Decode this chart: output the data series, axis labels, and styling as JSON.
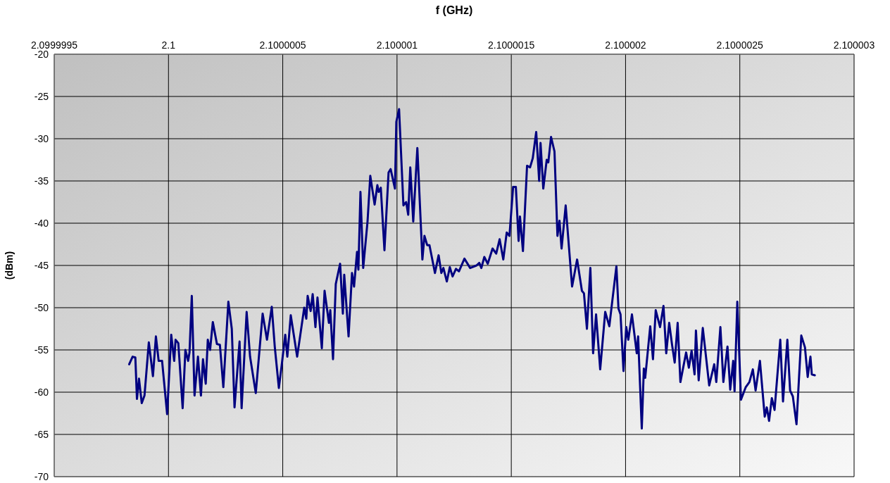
{
  "chart_data": {
    "type": "line",
    "xlabel": "f (GHz)",
    "ylabel": "(dBm)",
    "xlim": [
      2.0999995,
      2.100003
    ],
    "xticks": [
      2.0999995,
      2.1,
      2.1000005,
      2.100001,
      2.1000015,
      2.100002,
      2.1000025,
      2.100003
    ],
    "ylim": [
      -70,
      -20
    ],
    "yticks": [
      -70,
      -65,
      -60,
      -55,
      -50,
      -45,
      -40,
      -35,
      -30,
      -25,
      -20
    ],
    "grid": true,
    "marker": "none",
    "line_style": "solid",
    "series": [
      {
        "color": "#000080",
        "x": [
          2.099999828,
          2.099999843,
          2.099999855,
          2.099999862,
          2.099999871,
          2.099999883,
          2.099999895,
          2.099999914,
          2.099999932,
          2.099999945,
          2.099999957,
          2.099999972,
          2.099999994,
          2.100000012,
          2.100000025,
          2.100000031,
          2.100000043,
          2.100000062,
          2.100000074,
          2.100000086,
          2.100000092,
          2.100000102,
          2.100000114,
          2.100000129,
          2.100000142,
          2.100000151,
          2.100000163,
          2.100000172,
          2.100000182,
          2.100000194,
          2.100000212,
          2.100000225,
          2.10000024,
          2.100000262,
          2.100000277,
          2.100000289,
          2.100000311,
          2.10000032,
          2.100000342,
          2.100000357,
          2.100000382,
          2.100000412,
          2.100000431,
          2.100000452,
          2.100000465,
          2.100000483,
          2.100000495,
          2.100000511,
          2.10000052,
          2.100000535,
          2.100000563,
          2.100000594,
          2.100000603,
          2.100000609,
          2.100000622,
          2.100000631,
          2.100000643,
          2.100000652,
          2.100000671,
          2.100000683,
          2.100000702,
          2.100000708,
          2.10000072,
          2.100000732,
          2.100000751,
          2.100000763,
          2.100000769,
          2.100000788,
          2.100000803,
          2.100000812,
          2.100000825,
          2.100000831,
          2.10000084,
          2.100000852,
          2.100000871,
          2.100000883,
          2.100000902,
          2.100000914,
          2.10000092,
          2.100000929,
          2.100000945,
          2.100000963,
          2.100000972,
          2.100000991,
          2.100000997,
          2.100001009,
          2.100001028,
          2.10000104,
          2.100001049,
          2.100001058,
          2.100001071,
          2.100001089,
          2.100001111,
          2.10000112,
          2.100001132,
          2.100001142,
          2.100001166,
          2.100001182,
          2.100001194,
          2.100001203,
          2.100001218,
          2.100001231,
          2.100001243,
          2.100001258,
          2.100001271,
          2.100001295,
          2.10000132,
          2.100001348,
          2.10000136,
          2.100001369,
          2.100001382,
          2.100001397,
          2.100001418,
          2.100001434,
          2.100001449,
          2.100001465,
          2.10000148,
          2.100001492,
          2.100001508,
          2.10000152,
          2.100001532,
          2.100001538,
          2.100001551,
          2.100001569,
          2.100001582,
          2.100001594,
          2.100001609,
          2.100001622,
          2.100001628,
          2.10000164,
          2.100001655,
          2.100001662,
          2.100001674,
          2.100001689,
          2.100001702,
          2.100001711,
          2.10000172,
          2.100001738,
          2.100001766,
          2.100001788,
          2.100001809,
          2.100001818,
          2.100001831,
          2.100001846,
          2.100001858,
          2.100001871,
          2.100001889,
          2.100001911,
          2.100001929,
          2.100001942,
          2.10000196,
          2.100001969,
          2.100001978,
          2.100001991,
          2.100002003,
          2.100002012,
          2.100002028,
          2.100002049,
          2.100002055,
          2.100002071,
          2.10000208,
          2.100002086,
          2.100002108,
          2.10000212,
          2.100002132,
          2.100002151,
          2.100002166,
          2.100002178,
          2.100002191,
          2.100002203,
          2.100002215,
          2.100002228,
          2.10000224,
          2.100002265,
          2.100002277,
          2.100002289,
          2.100002302,
          2.100002308,
          2.10000232,
          2.100002338,
          2.100002366,
          2.100002388,
          2.100002397,
          2.100002415,
          2.100002428,
          2.100002446,
          2.100002458,
          2.100002471,
          2.100002477,
          2.100002489,
          2.100002505,
          2.100002526,
          2.100002542,
          2.100002557,
          2.100002569,
          2.100002588,
          2.100002609,
          2.100002618,
          2.100002628,
          2.10000264,
          2.100002652,
          2.100002677,
          2.100002689,
          2.100002708,
          2.10000272,
          2.100002732,
          2.100002748,
          2.100002769,
          2.100002785,
          2.100002797,
          2.100002809,
          2.100002815,
          2.100002828
        ],
        "values": [
          -56.7,
          -55.8,
          -55.9,
          -60.8,
          -58.4,
          -61.3,
          -60.4,
          -54.1,
          -58.1,
          -53.4,
          -56.3,
          -56.3,
          -62.6,
          -53.2,
          -56.3,
          -53.8,
          -54.2,
          -61.9,
          -55,
          -56.3,
          -55.3,
          -48.6,
          -60.4,
          -55.8,
          -60.4,
          -56.1,
          -59,
          -53.8,
          -55,
          -51.7,
          -54.3,
          -54.4,
          -59.4,
          -49.3,
          -52.5,
          -61.8,
          -54,
          -61.9,
          -50.5,
          -55.8,
          -60.1,
          -50.7,
          -53.8,
          -49.9,
          -54.6,
          -59.5,
          -56.9,
          -53.2,
          -55.8,
          -50.9,
          -55.8,
          -50,
          -51.3,
          -48.6,
          -50.4,
          -48.4,
          -52.3,
          -48.8,
          -54.8,
          -48,
          -51.8,
          -50.3,
          -56.1,
          -47.2,
          -44.8,
          -50.7,
          -46.1,
          -53.4,
          -45.9,
          -47.5,
          -43.4,
          -45.5,
          -36.3,
          -45.3,
          -39.8,
          -34.4,
          -37.8,
          -35.5,
          -36.3,
          -35.8,
          -43.2,
          -34,
          -33.6,
          -35.9,
          -28,
          -26.5,
          -37.9,
          -37.5,
          -39,
          -33.4,
          -39.8,
          -31.1,
          -44.3,
          -41.5,
          -42.6,
          -42.6,
          -45.9,
          -43.8,
          -45.9,
          -45.3,
          -46.9,
          -45.2,
          -46.3,
          -45.4,
          -45.7,
          -44.2,
          -45.3,
          -45,
          -44.7,
          -45.3,
          -44,
          -44.8,
          -43,
          -43.6,
          -41.9,
          -44.3,
          -41.1,
          -41.5,
          -35.7,
          -35.7,
          -42.1,
          -39.2,
          -43.3,
          -33.2,
          -33.4,
          -32.3,
          -29.2,
          -35,
          -30.5,
          -35.9,
          -32.5,
          -32.8,
          -29.8,
          -31.5,
          -41.5,
          -39.7,
          -43,
          -37.9,
          -47.5,
          -44.3,
          -48,
          -48.3,
          -52.5,
          -45.3,
          -55.4,
          -50.8,
          -57.3,
          -50.5,
          -52.2,
          -49.2,
          -45.1,
          -50.1,
          -50.8,
          -57.5,
          -52.3,
          -53.8,
          -50.8,
          -55.4,
          -53.4,
          -64.3,
          -57.2,
          -58.3,
          -52.2,
          -56.1,
          -50.3,
          -52.3,
          -49.8,
          -55.4,
          -51.8,
          -54.3,
          -56.5,
          -51.8,
          -58.8,
          -55.3,
          -57.1,
          -55.1,
          -57.9,
          -52.7,
          -58.6,
          -52.4,
          -59.2,
          -56.7,
          -58.8,
          -52.3,
          -58.8,
          -54.6,
          -59.7,
          -56.3,
          -59.9,
          -49.3,
          -60.9,
          -59.4,
          -58.8,
          -57.3,
          -59.8,
          -56.3,
          -62.9,
          -61.8,
          -63.4,
          -60.7,
          -62.1,
          -53.8,
          -61.1,
          -53.8,
          -59.8,
          -60.5,
          -63.8,
          -53.3,
          -54.7,
          -58.2,
          -55.8,
          -57.9,
          -58
        ]
      }
    ]
  }
}
